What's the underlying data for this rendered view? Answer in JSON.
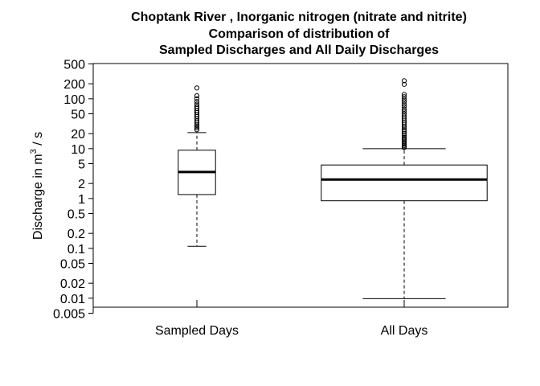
{
  "chart_data": {
    "type": "boxplot",
    "title_lines": [
      "Choptank River , Inorganic nitrogen (nitrate and nitrite)",
      "Comparison of distribution of",
      "Sampled Discharges and All Daily Discharges"
    ],
    "ylabel": {
      "prefix": "Discharge in m",
      "sup": "3",
      "suffix": " / s"
    },
    "y_scale": "log",
    "ylim": [
      0.005,
      500
    ],
    "y_ticks": [
      0.005,
      0.01,
      0.02,
      0.05,
      0.1,
      0.2,
      0.5,
      1,
      2,
      5,
      10,
      20,
      50,
      100,
      200,
      500
    ],
    "y_tick_labels": [
      "0.005",
      "0.01",
      "0.02",
      "0.05",
      "0.1",
      "0.2",
      "0.5",
      "1",
      "2",
      "5",
      "10",
      "20",
      "50",
      "100",
      "200",
      "500"
    ],
    "categories": [
      "Sampled Days",
      "All Days"
    ],
    "boxes": [
      {
        "name": "Sampled Days",
        "whisker_low": 0.11,
        "q1": 1.2,
        "median": 3.4,
        "q3": 9.3,
        "whisker_high": 21,
        "box_width": 0.18,
        "outliers": [
          24,
          26,
          28,
          30,
          33,
          36,
          40,
          44,
          48,
          53,
          58,
          64,
          70,
          78,
          88,
          100,
          115,
          165
        ]
      },
      {
        "name": "All Days",
        "whisker_low": 0.0098,
        "q1": 0.9,
        "median": 2.4,
        "q3": 4.7,
        "whisker_high": 10,
        "box_width": 0.8,
        "outliers": [
          10.5,
          11,
          11.6,
          12.3,
          13,
          14,
          15,
          16,
          17,
          18.5,
          20,
          22,
          24,
          26,
          28,
          31,
          34,
          37,
          41,
          45,
          50,
          56,
          62,
          70,
          78,
          88,
          98,
          110,
          122,
          195,
          230
        ]
      }
    ],
    "grid": false
  }
}
